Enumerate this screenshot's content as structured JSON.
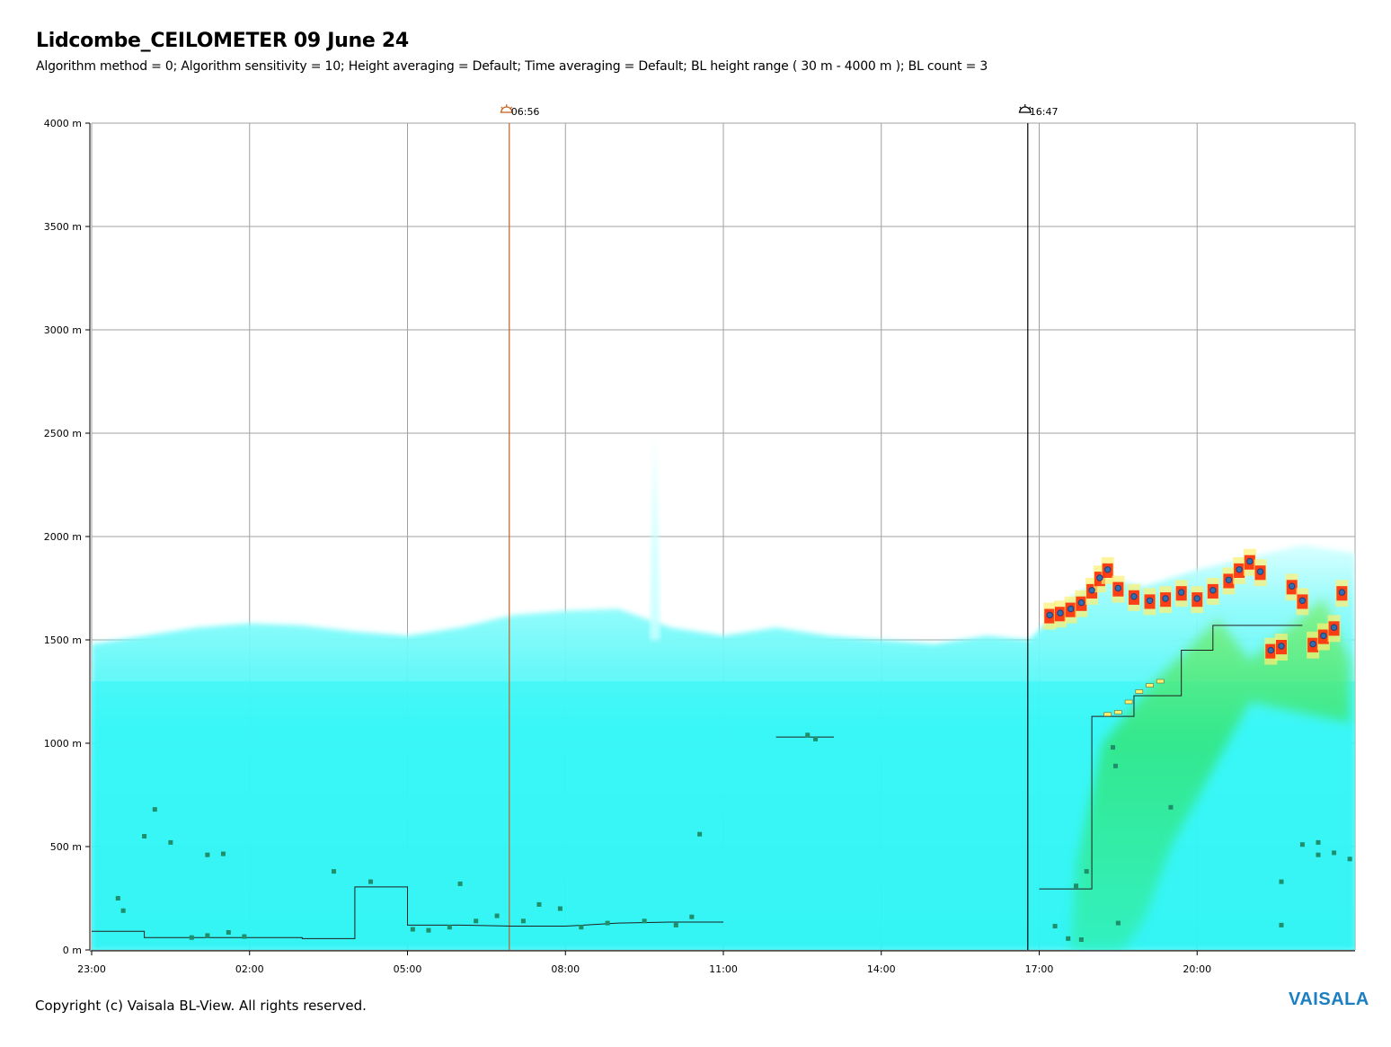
{
  "header": {
    "title": "Lidcombe_CEILOMETER 09 June 24",
    "subtitle": "Algorithm method = 0; Algorithm sensitivity = 10; Height averaging = Default; Time averaging = Default; BL height range ( 30 m - 4000 m ); BL count = 3"
  },
  "footer": {
    "copyright": "Copyright (c) Vaisala BL-View. All rights reserved.",
    "brand": "VAISALA"
  },
  "colors": {
    "background_aerosol": "#33f7f7",
    "light_aerosol": "#c8ffff",
    "enhanced_green": "#33e36b",
    "strong_yellow": "#fff070",
    "strong_red": "#ff1e00",
    "cloud_point": "#1f3f7a",
    "bl_layer": "#1e8f6a",
    "sunrise_line": "#c8601e",
    "sunset_line": "#000000",
    "grid": "#a0a0a0",
    "brand": "#1b7fc1"
  },
  "chart_data": {
    "type": "heatmap",
    "title": "Lidcombe_CEILOMETER 09 June 24",
    "xlabel": "",
    "ylabel": "",
    "x_unit": "hours since 23:00 (08 June)",
    "xlim": [
      23,
      47
    ],
    "ylim": [
      0,
      4000
    ],
    "y_ticks": [
      {
        "value": 0,
        "label": "0 m"
      },
      {
        "value": 500,
        "label": "500 m"
      },
      {
        "value": 1000,
        "label": "1000 m"
      },
      {
        "value": 1500,
        "label": "1500 m"
      },
      {
        "value": 2000,
        "label": "2000 m"
      },
      {
        "value": 2500,
        "label": "2500 m"
      },
      {
        "value": 3000,
        "label": "3000 m"
      },
      {
        "value": 3500,
        "label": "3500 m"
      },
      {
        "value": 4000,
        "label": "4000 m"
      }
    ],
    "x_ticks": [
      {
        "value": 23,
        "label": "23:00"
      },
      {
        "value": 26,
        "label": "02:00"
      },
      {
        "value": 29,
        "label": "05:00"
      },
      {
        "value": 32,
        "label": "08:00"
      },
      {
        "value": 35,
        "label": "11:00"
      },
      {
        "value": 38,
        "label": "14:00"
      },
      {
        "value": 41,
        "label": "17:00"
      },
      {
        "value": 44,
        "label": "20:00"
      }
    ],
    "grid": true,
    "markers": [
      {
        "type": "sunrise",
        "time": 30.933,
        "label": "06:56",
        "icon": "sunrise-icon"
      },
      {
        "type": "sunset",
        "time": 40.783,
        "label": "16:47",
        "icon": "sunset-icon"
      }
    ],
    "aerosol_top_profile": [
      {
        "x": 23.0,
        "y": 1480
      },
      {
        "x": 24.0,
        "y": 1520
      },
      {
        "x": 25.0,
        "y": 1560
      },
      {
        "x": 26.0,
        "y": 1580
      },
      {
        "x": 27.0,
        "y": 1570
      },
      {
        "x": 28.0,
        "y": 1540
      },
      {
        "x": 29.0,
        "y": 1520
      },
      {
        "x": 30.0,
        "y": 1560
      },
      {
        "x": 31.0,
        "y": 1620
      },
      {
        "x": 32.0,
        "y": 1640
      },
      {
        "x": 33.0,
        "y": 1650
      },
      {
        "x": 34.0,
        "y": 1560
      },
      {
        "x": 35.0,
        "y": 1520
      },
      {
        "x": 36.0,
        "y": 1560
      },
      {
        "x": 37.0,
        "y": 1520
      },
      {
        "x": 38.0,
        "y": 1500
      },
      {
        "x": 39.0,
        "y": 1480
      },
      {
        "x": 40.0,
        "y": 1520
      },
      {
        "x": 40.8,
        "y": 1500
      },
      {
        "x": 41.2,
        "y": 1600
      },
      {
        "x": 41.6,
        "y": 1700
      },
      {
        "x": 42.2,
        "y": 1800
      },
      {
        "x": 43.0,
        "y": 1760
      },
      {
        "x": 44.0,
        "y": 1840
      },
      {
        "x": 45.0,
        "y": 1900
      },
      {
        "x": 46.0,
        "y": 1960
      },
      {
        "x": 47.0,
        "y": 1920
      }
    ],
    "plume": {
      "x": 33.7,
      "y_top": 2480
    },
    "cloud_base_series": {
      "name": "",
      "points": [
        {
          "x": 41.2,
          "y": 1620
        },
        {
          "x": 41.4,
          "y": 1630
        },
        {
          "x": 41.6,
          "y": 1650
        },
        {
          "x": 41.8,
          "y": 1680
        },
        {
          "x": 42.0,
          "y": 1740
        },
        {
          "x": 42.15,
          "y": 1800
        },
        {
          "x": 42.3,
          "y": 1840
        },
        {
          "x": 42.5,
          "y": 1750
        },
        {
          "x": 42.8,
          "y": 1710
        },
        {
          "x": 43.1,
          "y": 1690
        },
        {
          "x": 43.4,
          "y": 1700
        },
        {
          "x": 43.7,
          "y": 1730
        },
        {
          "x": 44.0,
          "y": 1700
        },
        {
          "x": 44.3,
          "y": 1740
        },
        {
          "x": 44.6,
          "y": 1790
        },
        {
          "x": 44.8,
          "y": 1840
        },
        {
          "x": 45.0,
          "y": 1880
        },
        {
          "x": 45.2,
          "y": 1830
        },
        {
          "x": 45.4,
          "y": 1450
        },
        {
          "x": 45.6,
          "y": 1470
        },
        {
          "x": 45.8,
          "y": 1760
        },
        {
          "x": 46.0,
          "y": 1690
        },
        {
          "x": 46.2,
          "y": 1480
        },
        {
          "x": 46.4,
          "y": 1520
        },
        {
          "x": 46.6,
          "y": 1560
        },
        {
          "x": 46.75,
          "y": 1730
        }
      ]
    },
    "mixing_layer_height": [
      {
        "x": 23.0,
        "y": 90
      },
      {
        "x": 24.0,
        "y": 90
      },
      {
        "x": 24.0,
        "y": 60
      },
      {
        "x": 25.0,
        "y": 60
      },
      {
        "x": 26.0,
        "y": 60
      },
      {
        "x": 27.0,
        "y": 60
      },
      {
        "x": 27.0,
        "y": 55
      },
      {
        "x": 28.0,
        "y": 55
      },
      {
        "x": 28.0,
        "y": 305
      },
      {
        "x": 29.0,
        "y": 305
      },
      {
        "x": 29.0,
        "y": 120
      },
      {
        "x": 30.0,
        "y": 120
      },
      {
        "x": 31.0,
        "y": 115
      },
      {
        "x": 32.0,
        "y": 115
      },
      {
        "x": 33.0,
        "y": 130
      },
      {
        "x": 34.0,
        "y": 135
      },
      {
        "x": 35.0,
        "y": 135
      }
    ],
    "mixing_layer_late": [
      {
        "x": 36.0,
        "y": 1030
      },
      {
        "x": 37.1,
        "y": 1030
      }
    ],
    "mixing_layer_evening": [
      {
        "x": 41.0,
        "y": 295
      },
      {
        "x": 41.55,
        "y": 295
      },
      {
        "x": 42.0,
        "y": 295
      },
      {
        "x": 42.0,
        "y": 1130
      },
      {
        "x": 42.5,
        "y": 1130
      },
      {
        "x": 42.8,
        "y": 1130
      },
      {
        "x": 42.8,
        "y": 1230
      },
      {
        "x": 43.7,
        "y": 1230
      },
      {
        "x": 43.7,
        "y": 1450
      },
      {
        "x": 43.9,
        "y": 1450
      },
      {
        "x": 44.3,
        "y": 1450
      },
      {
        "x": 44.3,
        "y": 1570
      },
      {
        "x": 46.0,
        "y": 1570
      }
    ],
    "bl_layer_points": [
      {
        "x": 23.5,
        "y": 250
      },
      {
        "x": 23.6,
        "y": 190
      },
      {
        "x": 24.0,
        "y": 550
      },
      {
        "x": 24.2,
        "y": 680
      },
      {
        "x": 24.5,
        "y": 520
      },
      {
        "x": 24.9,
        "y": 60
      },
      {
        "x": 25.2,
        "y": 70
      },
      {
        "x": 25.6,
        "y": 85
      },
      {
        "x": 25.9,
        "y": 65
      },
      {
        "x": 25.2,
        "y": 460
      },
      {
        "x": 25.5,
        "y": 465
      },
      {
        "x": 28.3,
        "y": 330
      },
      {
        "x": 27.6,
        "y": 380
      },
      {
        "x": 29.1,
        "y": 100
      },
      {
        "x": 29.4,
        "y": 95
      },
      {
        "x": 29.8,
        "y": 110
      },
      {
        "x": 30.3,
        "y": 140
      },
      {
        "x": 30.7,
        "y": 165
      },
      {
        "x": 31.2,
        "y": 140
      },
      {
        "x": 32.3,
        "y": 110
      },
      {
        "x": 32.8,
        "y": 130
      },
      {
        "x": 33.5,
        "y": 140
      },
      {
        "x": 34.1,
        "y": 120
      },
      {
        "x": 34.4,
        "y": 160
      },
      {
        "x": 34.55,
        "y": 560
      },
      {
        "x": 31.5,
        "y": 220
      },
      {
        "x": 31.9,
        "y": 200
      },
      {
        "x": 30.0,
        "y": 320
      },
      {
        "x": 36.6,
        "y": 1040
      },
      {
        "x": 36.75,
        "y": 1020
      },
      {
        "x": 42.4,
        "y": 980
      },
      {
        "x": 42.45,
        "y": 890
      },
      {
        "x": 43.5,
        "y": 690
      },
      {
        "x": 41.9,
        "y": 380
      },
      {
        "x": 41.7,
        "y": 310
      },
      {
        "x": 41.3,
        "y": 115
      },
      {
        "x": 41.55,
        "y": 55
      },
      {
        "x": 41.8,
        "y": 50
      },
      {
        "x": 42.5,
        "y": 130
      },
      {
        "x": 45.6,
        "y": 120
      },
      {
        "x": 45.6,
        "y": 330
      },
      {
        "x": 46.0,
        "y": 510
      },
      {
        "x": 46.3,
        "y": 520
      },
      {
        "x": 46.6,
        "y": 470
      },
      {
        "x": 46.9,
        "y": 440
      },
      {
        "x": 46.3,
        "y": 460
      }
    ],
    "bl_layer_ridge": [
      {
        "x": 42.3,
        "y": 1140
      },
      {
        "x": 42.5,
        "y": 1150
      },
      {
        "x": 42.7,
        "y": 1200
      },
      {
        "x": 42.9,
        "y": 1250
      },
      {
        "x": 43.1,
        "y": 1280
      },
      {
        "x": 43.3,
        "y": 1300
      }
    ]
  }
}
